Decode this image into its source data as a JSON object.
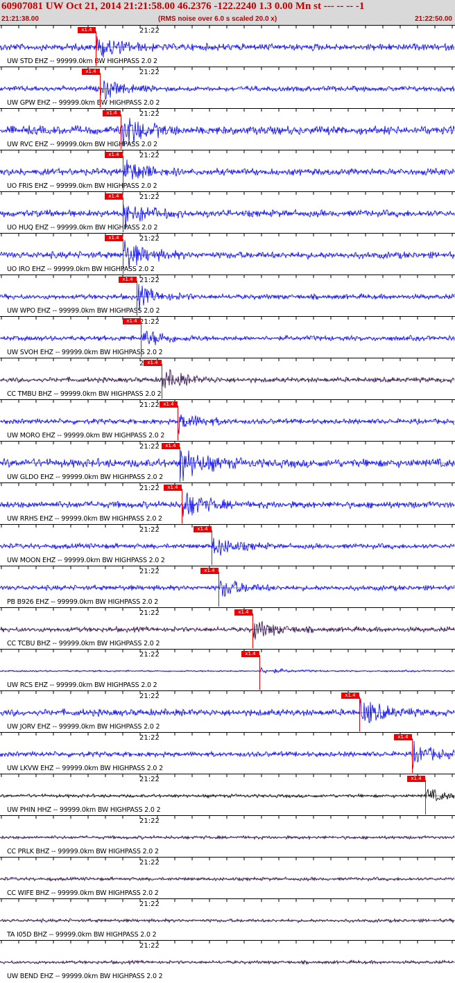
{
  "header": {
    "title": "60907081 UW Oct 21, 2014 21:21:58.00   46.2376 -122.2240  1.3 0.00 Mn st --- -- --  -1",
    "start_time": "21:21:38.00",
    "scale_note": "(RMS noise over 6.0 s scaled 20.0 x)",
    "end_time": "21:22:50.00"
  },
  "colors": {
    "blue": "#0000ee",
    "purple": "#2a0845",
    "black": "#000000",
    "pick": "#ee0000"
  },
  "traces": [
    {
      "label": "UW STD EHZ -- 99999.0km BW  HIGHPASS  2.0  2",
      "time_label": "21:22",
      "pick": "x1.4",
      "pick_frac": 0.21,
      "color": "blue",
      "amp": 4
    },
    {
      "label": "UW GPW EHZ -- 99999.0km BW  HIGHPASS  2.0  2",
      "time_label": "21:22",
      "pick": "x1.4",
      "pick_frac": 0.22,
      "color": "blue",
      "amp": 3
    },
    {
      "label": "UW RVC EHZ -- 99999.0km BW  HIGHPASS  2.0  2",
      "time_label": "21:22",
      "pick": "x1.4",
      "pick_frac": 0.265,
      "color": "blue",
      "amp": 5
    },
    {
      "label": "UO FRIS EHZ -- 99999.0km BW  HIGHPASS  2.0  2",
      "time_label": "21:22",
      "pick": "x1.4",
      "pick_frac": 0.27,
      "color": "blue",
      "amp": 4
    },
    {
      "label": "UO HUQ EHZ -- 99999.0km BW  HIGHPASS  2.0  2",
      "time_label": "21:22",
      "pick": "x1.4",
      "pick_frac": 0.27,
      "color": "blue",
      "amp": 4
    },
    {
      "label": "UO IRO EHZ -- 99999.0km BW  HIGHPASS  2.0  2",
      "time_label": "21:22",
      "pick": "x1.4",
      "pick_frac": 0.27,
      "color": "blue",
      "amp": 4
    },
    {
      "label": "UW WPO EHZ -- 99999.0km BW  HIGHPASS  2.0  2",
      "time_label": "21:22",
      "pick": "x1.4",
      "pick_frac": 0.3,
      "color": "blue",
      "amp": 3
    },
    {
      "label": "UW SVOH EHZ -- 99999.0km BW  HIGHPASS  2.0  2",
      "time_label": "21:22",
      "pick": "x1.4",
      "pick_frac": 0.31,
      "color": "blue",
      "amp": 3
    },
    {
      "label": "CC TMBU BHZ -- 99999.0km BW  HIGHPASS  2.0  2",
      "time_label": "21:22",
      "pick": "x1.4",
      "pick_frac": 0.355,
      "color": "purple",
      "amp": 3
    },
    {
      "label": "UW MORO EHZ -- 99999.0km BW  HIGHPASS  2.0  2",
      "time_label": "21:22",
      "pick": "x1.4",
      "pick_frac": 0.39,
      "color": "blue",
      "amp": 3
    },
    {
      "label": "UW GLDO EHZ -- 99999.0km BW  HIGHPASS  2.0  2",
      "time_label": "21:22",
      "pick": "x1.4",
      "pick_frac": 0.395,
      "color": "blue",
      "amp": 5
    },
    {
      "label": "UW RRHS EHZ -- 99999.0km BW  HIGHPASS  2.0  2",
      "time_label": "21:22",
      "pick": "x1.4",
      "pick_frac": 0.4,
      "color": "blue",
      "amp": 4
    },
    {
      "label": "UW MOON EHZ -- 99999.0km BW  HIGHPASS  2.0  2",
      "time_label": "21:22",
      "pick": "x1.4",
      "pick_frac": 0.465,
      "color": "blue",
      "amp": 3
    },
    {
      "label": "PB B926 EHZ -- 99999.0km BW  HIGHPASS  2.0  2",
      "time_label": "21:22",
      "pick": "x1.4",
      "pick_frac": 0.48,
      "color": "blue",
      "amp": 3
    },
    {
      "label": "CC TCBU BHZ -- 99999.0km BW  HIGHPASS  2.0  2",
      "time_label": "21:22",
      "pick": "x1.4",
      "pick_frac": 0.555,
      "color": "purple",
      "amp": 3
    },
    {
      "label": "UW RCS EHZ -- 99999.0km BW  HIGHPASS  2.0  2",
      "time_label": "21:22",
      "pick": "x1.4",
      "pick_frac": 0.57,
      "color": "blue",
      "amp": 1
    },
    {
      "label": "UW JORV EHZ -- 99999.0km BW  HIGHPASS  2.0  2",
      "time_label": "21:22",
      "pick": "x1.4",
      "pick_frac": 0.79,
      "color": "blue",
      "amp": 4
    },
    {
      "label": "UW LKVW EHZ -- 99999.0km BW  HIGHPASS  2.0  2",
      "time_label": "21:22",
      "pick": "x1.4",
      "pick_frac": 0.905,
      "color": "blue",
      "amp": 3
    },
    {
      "label": "UW PHIN HHZ -- 99999.0km BW  HIGHPASS  2.0  2",
      "time_label": "21:22",
      "pick": "x1.4",
      "pick_frac": 0.935,
      "color": "black",
      "amp": 2
    },
    {
      "label": "CC PRLK BHZ -- 99999.0km BW  HIGHPASS  2.0  2",
      "time_label": "21:22",
      "pick": "",
      "pick_frac": null,
      "color": "purple",
      "amp": 2
    },
    {
      "label": "CC WIFE BHZ -- 99999.0km BW  HIGHPASS  2.0  2",
      "time_label": "21:22",
      "pick": "",
      "pick_frac": null,
      "color": "purple",
      "amp": 2
    },
    {
      "label": "TA I05D BHZ -- 99999.0km BW  HIGHPASS  2.0  2",
      "time_label": "21:22",
      "pick": "",
      "pick_frac": null,
      "color": "purple",
      "amp": 2
    },
    {
      "label": "UW BEND EHZ -- 99999.0km BW  HIGHPASS  2.0  2",
      "time_label": "21:22",
      "pick": "",
      "pick_frac": null,
      "color": "purple",
      "amp": 2
    }
  ]
}
